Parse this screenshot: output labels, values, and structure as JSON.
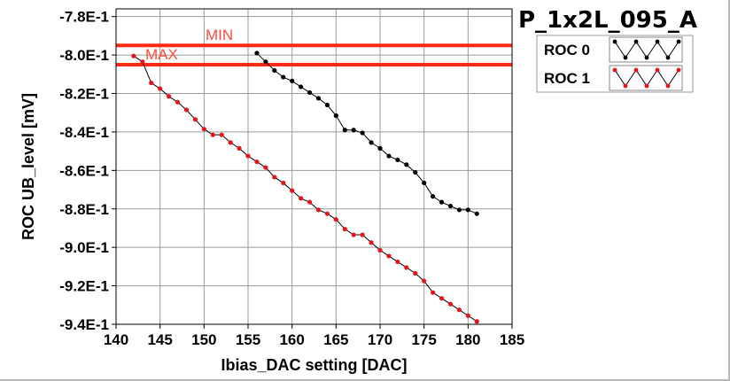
{
  "chart_data": {
    "type": "line",
    "title": "P_1x2L_095_A",
    "xlabel": "Ibias_DAC setting [DAC]",
    "ylabel": "ROC UB_level [mV]",
    "xlim": [
      140,
      185
    ],
    "ylim": [
      -0.94,
      -0.776
    ],
    "x_ticks": [
      140,
      145,
      150,
      155,
      160,
      165,
      170,
      175,
      180,
      185
    ],
    "x_tick_labels": [
      "140",
      "145",
      "150",
      "155",
      "160",
      "165",
      "170",
      "175",
      "180",
      "185"
    ],
    "y_ticks": [
      -0.78,
      -0.8,
      -0.82,
      -0.84,
      -0.86,
      -0.88,
      -0.9,
      -0.92,
      -0.94
    ],
    "y_tick_labels": [
      "-7.8E-1",
      "-8.0E-1",
      "-8.2E-1",
      "-8.4E-1",
      "-8.6E-1",
      "-8.8E-1",
      "-9.0E-1",
      "-9.2E-1",
      "-9.4E-1"
    ],
    "grid": true,
    "legend_position": "top-right",
    "limits": [
      {
        "label": "MIN",
        "y": -0.795,
        "color": "#ff2a10"
      },
      {
        "label": "MAX",
        "y": -0.805,
        "color": "#ff2a10"
      }
    ],
    "series": [
      {
        "name": "ROC 0",
        "color": "#000000",
        "x": [
          156,
          157,
          158,
          159,
          160,
          161,
          162,
          163,
          164,
          165,
          166,
          167,
          168,
          169,
          170,
          171,
          172,
          173,
          174,
          175,
          176,
          177,
          178,
          179,
          180,
          181
        ],
        "values": [
          -0.799,
          -0.8035,
          -0.808,
          -0.8115,
          -0.8135,
          -0.8165,
          -0.8195,
          -0.8225,
          -0.826,
          -0.8315,
          -0.839,
          -0.839,
          -0.8405,
          -0.8455,
          -0.8485,
          -0.8525,
          -0.8545,
          -0.857,
          -0.861,
          -0.8665,
          -0.8735,
          -0.8765,
          -0.8785,
          -0.8805,
          -0.8805,
          -0.8825
        ]
      },
      {
        "name": "ROC 1",
        "color": "#e8121a",
        "x": [
          142,
          143,
          144,
          145,
          146,
          147,
          148,
          149,
          150,
          151,
          152,
          153,
          154,
          155,
          156,
          157,
          158,
          159,
          160,
          161,
          162,
          163,
          164,
          165,
          166,
          167,
          168,
          169,
          170,
          171,
          172,
          173,
          174,
          175,
          176,
          177,
          178,
          179,
          180,
          181
        ],
        "values": [
          -0.8005,
          -0.8035,
          -0.8145,
          -0.8175,
          -0.8215,
          -0.8245,
          -0.8285,
          -0.8335,
          -0.8385,
          -0.8415,
          -0.8415,
          -0.8455,
          -0.8485,
          -0.8525,
          -0.8555,
          -0.8585,
          -0.8635,
          -0.8665,
          -0.8705,
          -0.8745,
          -0.8765,
          -0.8805,
          -0.8825,
          -0.8855,
          -0.8905,
          -0.8935,
          -0.8935,
          -0.8975,
          -0.9015,
          -0.9045,
          -0.9075,
          -0.9105,
          -0.9135,
          -0.9175,
          -0.9235,
          -0.9265,
          -0.9295,
          -0.9325,
          -0.9355,
          -0.9385
        ]
      }
    ]
  }
}
